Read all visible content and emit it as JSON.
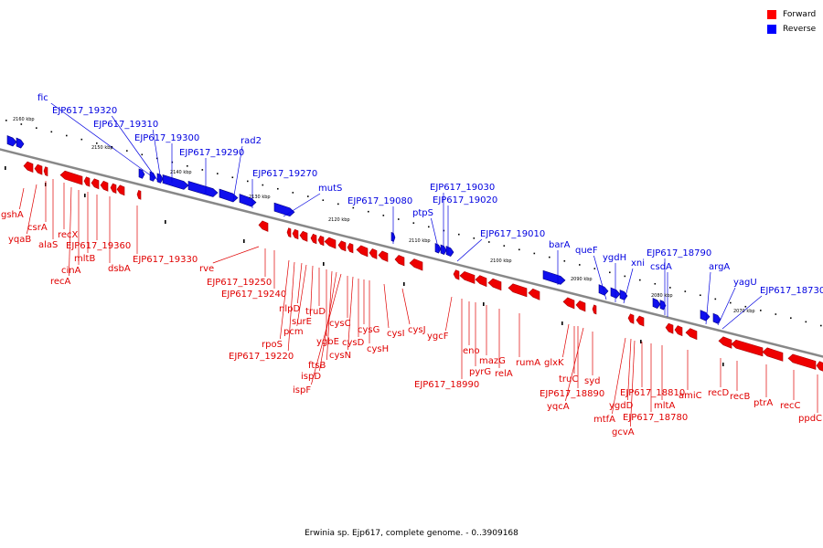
{
  "legend": [
    {
      "label": "Forward",
      "color": "#ff0000"
    },
    {
      "label": "Reverse",
      "color": "#0000ff"
    }
  ],
  "caption": "Erwinia sp. Ejp617, complete genome. - 0..3909168",
  "colors": {
    "forward": "#ee0000",
    "reverse": "#1010ee",
    "forward_label": "#e00000",
    "reverse_label": "#0000e0",
    "backbone": "#888888"
  },
  "ticks": [
    "2160 kbp",
    "2150 kbp",
    "2140 kbp",
    "2130 kbp",
    "2120 kbp",
    "2110 kbp",
    "2100 kbp",
    "2090 kbp",
    "2080 kbp",
    "2070 kbp"
  ],
  "forward_labels": [
    "gshA",
    "yqaB",
    "csrA",
    "alaS",
    "recX",
    "recA",
    "cinA",
    "mltB",
    "EJP617_19360",
    "dsbA",
    "EJP617_19330",
    "rve",
    "EJP617_19250",
    "EJP617_19240",
    "rpoS",
    "EJP617_19220",
    "nlpD",
    "pcm",
    "surE",
    "truD",
    "ygbE",
    "ftsB",
    "ispD",
    "ispF",
    "cysC",
    "cysN",
    "cysD",
    "cysG",
    "cysH",
    "cysI",
    "cysJ",
    "ygcF",
    "EJP617_18990",
    "eno",
    "pyrG",
    "mazG",
    "relA",
    "rumA",
    "glxK",
    "truC",
    "syd",
    "EJP617_18890",
    "yqcA",
    "mtfA",
    "ygdD",
    "EJP617_18810",
    "gcvA",
    "EJP617_18780",
    "mltA",
    "amiC",
    "recD",
    "recB",
    "ptrA",
    "recC",
    "ppdC"
  ],
  "reverse_labels": [
    "fic",
    "EJP617_19320",
    "EJP617_19310",
    "EJP617_19300",
    "EJP617_19290",
    "rad2",
    "EJP617_19270",
    "mutS",
    "EJP617_19080",
    "ptpS",
    "EJP617_19030",
    "EJP617_19020",
    "EJP617_19010",
    "barA",
    "queF",
    "ygdH",
    "xni",
    "EJP617_18790",
    "csdA",
    "argA",
    "yagU",
    "EJP617_18730"
  ]
}
